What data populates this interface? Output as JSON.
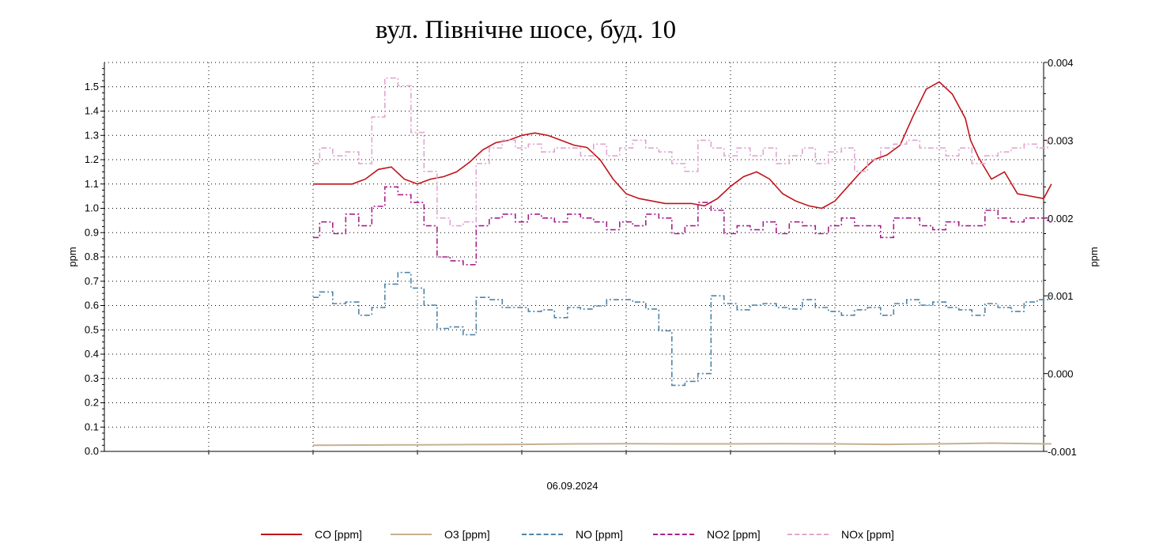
{
  "chart_data": {
    "type": "line",
    "title": "вул. Північне шосе, буд. 10",
    "xlabel": "06.09.2024",
    "ylabel": "ppm",
    "y2label": "ppm",
    "ylim": [
      0,
      1.6
    ],
    "y2lim": [
      -0.001,
      0.004
    ],
    "yticks": [
      "0.0",
      "0.1",
      "0.2",
      "0.3",
      "0.4",
      "0.5",
      "0.6",
      "0.7",
      "0.8",
      "0.9",
      "1.0",
      "1.1",
      "1.2",
      "1.3",
      "1.4",
      "1.5"
    ],
    "y2ticks": [
      "-0.001",
      "0.000",
      "0.001",
      "0.002",
      "0.003",
      "0.004"
    ],
    "grid": true,
    "legend_position": "bottom",
    "x_range_hours": [
      0,
      36
    ],
    "series": [
      {
        "name": "CO [ppm]",
        "color": "#c0131a",
        "dash": "solid",
        "axis": "left",
        "x": [
          8.0,
          8.5,
          9.0,
          9.5,
          10.0,
          10.5,
          11.0,
          11.5,
          12.0,
          12.5,
          13.0,
          13.5,
          14.0,
          14.5,
          15.0,
          15.5,
          16.0,
          16.5,
          17.0,
          17.5,
          18.0,
          18.5,
          19.0,
          19.5,
          20.0,
          20.5,
          21.0,
          21.5,
          22.0,
          22.5,
          23.0,
          23.5,
          24.0,
          24.5,
          25.0,
          25.5,
          26.0,
          26.5,
          27.0,
          27.5,
          28.0,
          28.5,
          29.0,
          29.5,
          30.0,
          30.5,
          31.0,
          31.5,
          32.0,
          32.5,
          33.0,
          33.2,
          33.5,
          34.0,
          34.5,
          35.0,
          35.5,
          36.0,
          36.3
        ],
        "values": [
          1.1,
          1.1,
          1.1,
          1.1,
          1.12,
          1.16,
          1.17,
          1.12,
          1.1,
          1.12,
          1.13,
          1.15,
          1.19,
          1.24,
          1.27,
          1.28,
          1.3,
          1.31,
          1.3,
          1.28,
          1.26,
          1.25,
          1.2,
          1.12,
          1.06,
          1.04,
          1.03,
          1.02,
          1.02,
          1.02,
          1.01,
          1.04,
          1.09,
          1.13,
          1.15,
          1.12,
          1.06,
          1.03,
          1.01,
          1.0,
          1.03,
          1.09,
          1.15,
          1.2,
          1.22,
          1.26,
          1.38,
          1.49,
          1.52,
          1.47,
          1.37,
          1.28,
          1.21,
          1.12,
          1.15,
          1.06,
          1.05,
          1.04,
          1.1
        ]
      },
      {
        "name": "O3 [ppm]",
        "color": "#c7b090",
        "dash": "solid",
        "axis": "left",
        "x": [
          8.0,
          10.0,
          12.0,
          14.0,
          16.0,
          18.0,
          20.0,
          22.0,
          24.0,
          26.0,
          28.0,
          30.0,
          32.0,
          34.0,
          36.3
        ],
        "values": [
          0.025,
          0.026,
          0.027,
          0.028,
          0.029,
          0.031,
          0.032,
          0.031,
          0.031,
          0.032,
          0.031,
          0.029,
          0.031,
          0.034,
          0.031
        ]
      },
      {
        "name": "NO [ppm]",
        "color": "#4f84a6",
        "dash": "dashdot",
        "axis": "right",
        "x": [
          8.0,
          8.5,
          9.0,
          9.5,
          10.0,
          10.5,
          11.0,
          11.5,
          12.0,
          12.5,
          13.0,
          13.5,
          14.0,
          14.5,
          15.0,
          15.5,
          16.0,
          16.5,
          17.0,
          17.5,
          18.0,
          18.5,
          19.0,
          19.5,
          20.0,
          20.5,
          21.0,
          21.5,
          22.0,
          22.5,
          23.0,
          23.5,
          24.0,
          24.5,
          25.0,
          25.5,
          26.0,
          26.5,
          27.0,
          27.5,
          28.0,
          28.5,
          29.0,
          29.5,
          30.0,
          30.5,
          31.0,
          31.5,
          32.0,
          32.5,
          33.0,
          33.5,
          34.0,
          34.5,
          35.0,
          35.5,
          36.0,
          36.3
        ],
        "values": [
          0.00098,
          0.00105,
          0.0009,
          0.00092,
          0.00075,
          0.00085,
          0.00115,
          0.0013,
          0.0011,
          0.00088,
          0.00058,
          0.0006,
          0.0005,
          0.00098,
          0.00095,
          0.00085,
          0.00085,
          0.0008,
          0.00082,
          0.00072,
          0.00085,
          0.00083,
          0.00087,
          0.00095,
          0.00095,
          0.00092,
          0.00083,
          0.00055,
          -0.00015,
          -0.0001,
          0.0,
          0.001,
          0.0009,
          0.00082,
          0.00088,
          0.0009,
          0.00085,
          0.00083,
          0.00095,
          0.00085,
          0.0008,
          0.00075,
          0.00082,
          0.00085,
          0.00075,
          0.0009,
          0.00095,
          0.00088,
          0.00092,
          0.00085,
          0.00082,
          0.00075,
          0.0009,
          0.00085,
          0.0008,
          0.00092,
          0.00095,
          0.001
        ]
      },
      {
        "name": "NO2 [ppm]",
        "color": "#a8208a",
        "dash": "dashdot",
        "axis": "right",
        "x": [
          8.0,
          8.5,
          9.0,
          9.5,
          10.0,
          10.5,
          11.0,
          11.5,
          12.0,
          12.5,
          13.0,
          13.5,
          14.0,
          14.5,
          15.0,
          15.5,
          16.0,
          16.5,
          17.0,
          17.5,
          18.0,
          18.5,
          19.0,
          19.5,
          20.0,
          20.5,
          21.0,
          21.5,
          22.0,
          22.5,
          23.0,
          23.5,
          24.0,
          24.5,
          25.0,
          25.5,
          26.0,
          26.5,
          27.0,
          27.5,
          28.0,
          28.5,
          29.0,
          29.5,
          30.0,
          30.5,
          31.0,
          31.5,
          32.0,
          32.5,
          33.0,
          33.5,
          34.0,
          34.5,
          35.0,
          35.5,
          36.0,
          36.3
        ],
        "values": [
          0.00175,
          0.00195,
          0.0018,
          0.00205,
          0.0019,
          0.00215,
          0.0024,
          0.0023,
          0.0022,
          0.0019,
          0.0015,
          0.00145,
          0.0014,
          0.0019,
          0.002,
          0.00205,
          0.00195,
          0.00205,
          0.002,
          0.00195,
          0.00205,
          0.002,
          0.00195,
          0.00185,
          0.00195,
          0.0019,
          0.00205,
          0.002,
          0.0018,
          0.0019,
          0.0022,
          0.0021,
          0.0018,
          0.0019,
          0.00185,
          0.00195,
          0.0018,
          0.00195,
          0.0019,
          0.0018,
          0.0019,
          0.002,
          0.0019,
          0.0019,
          0.00175,
          0.002,
          0.002,
          0.0019,
          0.00185,
          0.00195,
          0.0019,
          0.0019,
          0.0021,
          0.002,
          0.00195,
          0.002,
          0.002,
          0.00195
        ]
      },
      {
        "name": "NOx [ppm]",
        "color": "#e0a6d2",
        "dash": "dashdot",
        "axis": "right",
        "x": [
          8.0,
          8.5,
          9.0,
          9.5,
          10.0,
          10.5,
          11.0,
          11.5,
          12.0,
          12.5,
          13.0,
          13.5,
          14.0,
          14.5,
          15.0,
          15.5,
          16.0,
          16.5,
          17.0,
          17.5,
          18.0,
          18.5,
          19.0,
          19.5,
          20.0,
          20.5,
          21.0,
          21.5,
          22.0,
          22.5,
          23.0,
          23.5,
          24.0,
          24.5,
          25.0,
          25.5,
          26.0,
          26.5,
          27.0,
          27.5,
          28.0,
          28.5,
          29.0,
          29.5,
          30.0,
          30.5,
          31.0,
          31.5,
          32.0,
          32.5,
          33.0,
          33.5,
          34.0,
          34.5,
          35.0,
          35.5,
          36.0,
          36.3
        ],
        "values": [
          0.0027,
          0.0029,
          0.0028,
          0.00285,
          0.0027,
          0.0033,
          0.0038,
          0.0037,
          0.0031,
          0.0026,
          0.002,
          0.0019,
          0.00195,
          0.0027,
          0.0029,
          0.003,
          0.0029,
          0.00295,
          0.00285,
          0.0029,
          0.0029,
          0.0028,
          0.00295,
          0.0028,
          0.0029,
          0.003,
          0.0029,
          0.00285,
          0.0027,
          0.0026,
          0.003,
          0.0029,
          0.0028,
          0.0029,
          0.0028,
          0.0029,
          0.0027,
          0.0028,
          0.0029,
          0.0027,
          0.00285,
          0.0029,
          0.0026,
          0.00275,
          0.0029,
          0.00295,
          0.003,
          0.0029,
          0.0029,
          0.0028,
          0.0029,
          0.0027,
          0.0028,
          0.00285,
          0.0029,
          0.00295,
          0.0029,
          0.003
        ]
      }
    ]
  }
}
